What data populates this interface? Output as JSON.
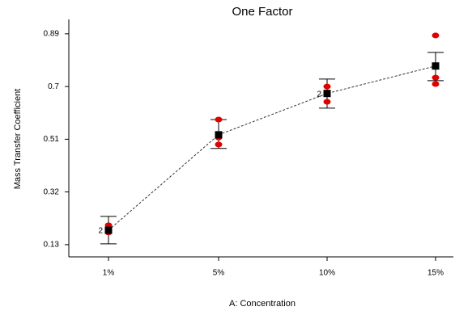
{
  "chart_data": {
    "type": "line",
    "title": "One Factor",
    "x_label": "A: Concentration",
    "y_label": "Mass Transfer Coefficient",
    "categories": [
      "1%",
      "5%",
      "10%",
      "15%"
    ],
    "series": [
      {
        "color": "#000000",
        "values": [
          0.182,
          0.526,
          0.675,
          0.774
        ],
        "lower": [
          0.133,
          0.477,
          0.622,
          0.721
        ],
        "upper": [
          0.232,
          0.581,
          0.727,
          0.823
        ]
      }
    ],
    "design_points": {
      "color": "#e00000",
      "values": [
        [
          0.2,
          0.174
        ],
        [
          0.581,
          0.516,
          0.491
        ],
        [
          0.7,
          0.675,
          0.645
        ],
        [
          0.884,
          0.732,
          0.709
        ]
      ]
    },
    "point_count_labels": [
      "2",
      null,
      "2",
      null
    ],
    "ylim": [
      0.086,
      0.942
    ],
    "yticks": [
      0.13,
      0.32,
      0.51,
      0.7,
      0.89
    ]
  }
}
